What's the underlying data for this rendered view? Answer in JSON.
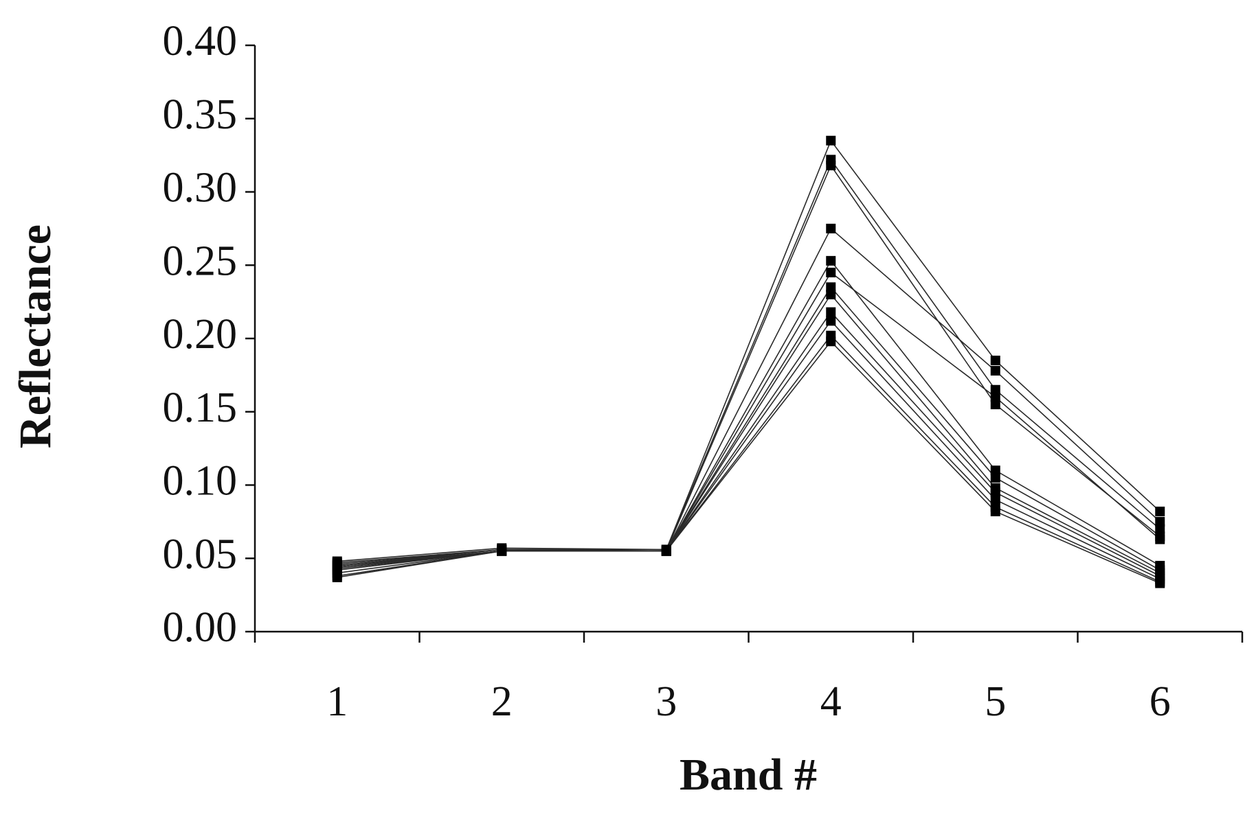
{
  "chart_data": {
    "type": "line",
    "x_label": "Band #",
    "y_label": "Reflectance",
    "categories": [
      "1",
      "2",
      "3",
      "4",
      "5",
      "6"
    ],
    "ylim": [
      0,
      0.4
    ],
    "yticks": [
      {
        "value": 0,
        "label": "0.00"
      },
      {
        "value": 0.05,
        "label": "0.05"
      },
      {
        "value": 0.1,
        "label": "0.10"
      },
      {
        "value": 0.15,
        "label": "0.15"
      },
      {
        "value": 0.2,
        "label": "0.20"
      },
      {
        "value": 0.25,
        "label": "0.25"
      },
      {
        "value": 0.3,
        "label": "0.30"
      },
      {
        "value": 0.35,
        "label": "0.35"
      },
      {
        "value": 0.4,
        "label": "0.40"
      }
    ],
    "grid": false,
    "color": "#2a2a2a",
    "series": [
      {
        "values": [
          0.048,
          0.057,
          0.056,
          0.335,
          0.185,
          0.082
        ]
      },
      {
        "values": [
          0.047,
          0.056,
          0.056,
          0.322,
          0.165,
          0.07
        ]
      },
      {
        "values": [
          0.046,
          0.056,
          0.055,
          0.318,
          0.155,
          0.065
        ]
      },
      {
        "values": [
          0.045,
          0.056,
          0.055,
          0.275,
          0.178,
          0.075
        ]
      },
      {
        "values": [
          0.045,
          0.055,
          0.055,
          0.245,
          0.16,
          0.063
        ]
      },
      {
        "values": [
          0.044,
          0.055,
          0.055,
          0.253,
          0.11,
          0.045
        ]
      },
      {
        "values": [
          0.044,
          0.055,
          0.055,
          0.235,
          0.105,
          0.042
        ]
      },
      {
        "values": [
          0.043,
          0.055,
          0.055,
          0.23,
          0.098,
          0.04
        ]
      },
      {
        "values": [
          0.042,
          0.055,
          0.055,
          0.218,
          0.095,
          0.038
        ]
      },
      {
        "values": [
          0.04,
          0.055,
          0.055,
          0.212,
          0.09,
          0.036
        ]
      },
      {
        "values": [
          0.038,
          0.055,
          0.055,
          0.202,
          0.085,
          0.034
        ]
      },
      {
        "values": [
          0.037,
          0.055,
          0.055,
          0.198,
          0.082,
          0.033
        ]
      }
    ]
  }
}
